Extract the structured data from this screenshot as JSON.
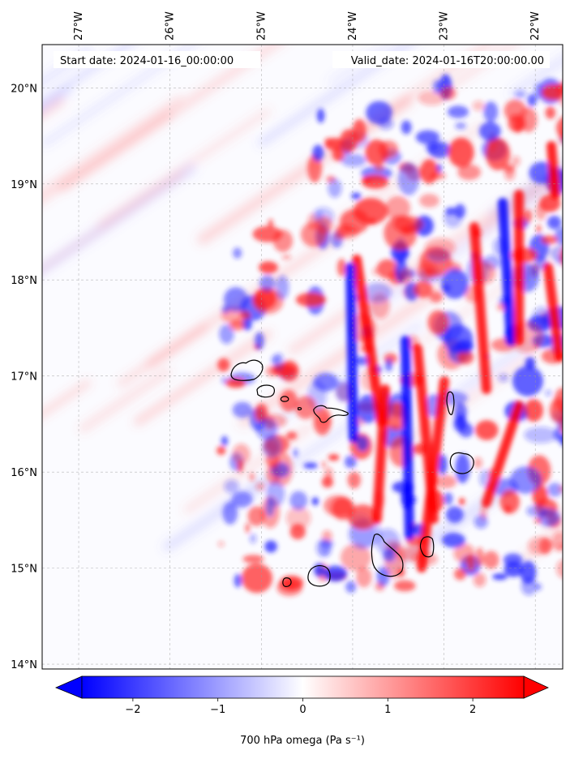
{
  "map": {
    "start_date_label": "Start date: 2024-01-16_00:00:00",
    "valid_date_label": "Valid_date: 2024-01-16T20:00:00.00",
    "lon_ticks": [
      {
        "value": -27,
        "label": "27°W"
      },
      {
        "value": -26,
        "label": "26°W"
      },
      {
        "value": -25,
        "label": "25°W"
      },
      {
        "value": -24,
        "label": "24°W"
      },
      {
        "value": -23,
        "label": "23°W"
      },
      {
        "value": -22,
        "label": "22°W"
      }
    ],
    "lat_ticks": [
      {
        "value": 20,
        "label": "20°N"
      },
      {
        "value": 19,
        "label": "19°N"
      },
      {
        "value": 18,
        "label": "18°N"
      },
      {
        "value": 17,
        "label": "17°N"
      },
      {
        "value": 16,
        "label": "16°N"
      },
      {
        "value": 15,
        "label": "15°N"
      },
      {
        "value": 14,
        "label": "14°N"
      }
    ],
    "lon_range": [
      -27.4,
      -21.7
    ],
    "lat_range": [
      13.95,
      20.45
    ],
    "gridlines": true,
    "field": "700 hPa omega",
    "islands": [
      {
        "name": "Santo Antão",
        "lon": -25.15,
        "lat": 17.05
      },
      {
        "name": "São Vicente",
        "lon": -24.95,
        "lat": 16.84
      },
      {
        "name": "Santa Luzia",
        "lon": -24.74,
        "lat": 16.76
      },
      {
        "name": "Branco",
        "lon": -24.58,
        "lat": 16.66
      },
      {
        "name": "São Nicolau",
        "lon": -24.25,
        "lat": 16.6
      },
      {
        "name": "Sal",
        "lon": -22.93,
        "lat": 16.72
      },
      {
        "name": "Boa Vista",
        "lon": -22.82,
        "lat": 16.09
      },
      {
        "name": "Maio",
        "lon": -23.18,
        "lat": 15.22
      },
      {
        "name": "Santiago",
        "lon": -23.62,
        "lat": 15.09
      },
      {
        "name": "Fogo",
        "lon": -24.36,
        "lat": 14.92
      },
      {
        "name": "Brava",
        "lon": -24.72,
        "lat": 14.85
      }
    ]
  },
  "colorbar": {
    "label": "700 hPa omega (Pa s⁻¹)",
    "min": -2.6,
    "max": 2.6,
    "ticks": [
      {
        "value": -2,
        "label": "−2"
      },
      {
        "value": -1,
        "label": "−1"
      },
      {
        "value": 0,
        "label": "0"
      },
      {
        "value": 1,
        "label": "1"
      },
      {
        "value": 2,
        "label": "2"
      }
    ],
    "extend": "both",
    "cmap": "bwr",
    "color_negative": "#0000ff",
    "color_zero": "#ffffff",
    "color_positive": "#ff0000"
  }
}
